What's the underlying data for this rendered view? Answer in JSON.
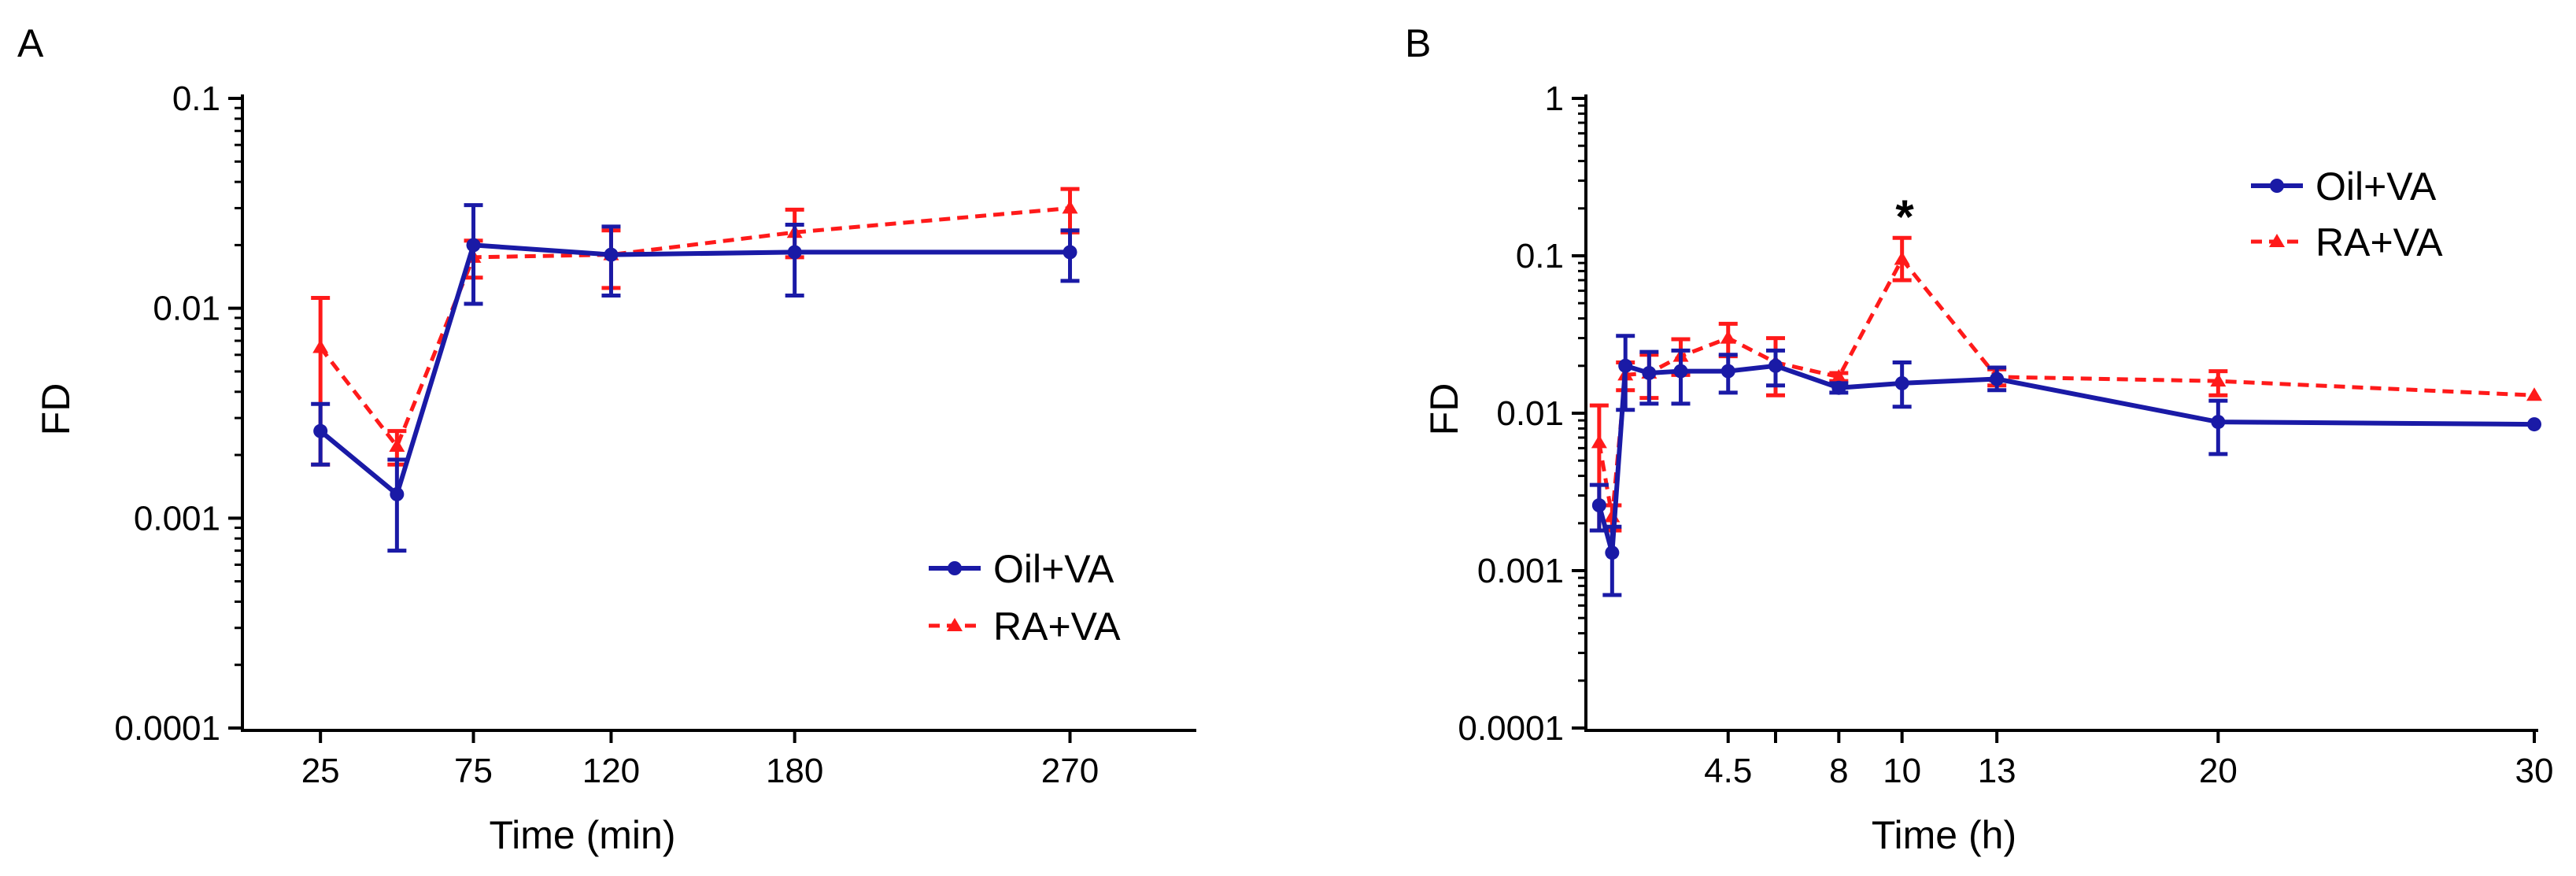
{
  "chart_data": [
    {
      "panel_label": "A",
      "type": "line",
      "title": "",
      "xlabel": "Time (min)",
      "ylabel": "FD",
      "yscale": "log",
      "ylim": [
        0.0001,
        0.1
      ],
      "xlim": [
        0,
        310
      ],
      "grid": false,
      "legend_position": "bottom-right",
      "x_ticks": [
        25,
        75,
        120,
        180,
        270
      ],
      "x_tick_labels": [
        "25",
        "75",
        "120",
        "180",
        "270"
      ],
      "y_ticks": [
        0.0001,
        0.001,
        0.01,
        0.1
      ],
      "y_tick_labels": [
        "0.0001",
        "0.001",
        "0.01",
        "0.1"
      ],
      "series": [
        {
          "name": "Oil+VA",
          "color": "#1a1aa6",
          "line_style": "solid",
          "marker": "circle",
          "x": [
            25,
            50,
            75,
            120,
            180,
            270
          ],
          "y": [
            0.0026,
            0.0013,
            0.02,
            0.018,
            0.0185,
            0.0185
          ],
          "err_low": [
            0.0018,
            0.0007,
            0.0105,
            0.0115,
            0.0115,
            0.0135
          ],
          "err_high": [
            0.0035,
            0.0019,
            0.031,
            0.0245,
            0.025,
            0.0235
          ]
        },
        {
          "name": "RA+VA",
          "color": "#ff1a1a",
          "line_style": "dashed",
          "marker": "triangle",
          "x": [
            25,
            50,
            75,
            120,
            180,
            270
          ],
          "y": [
            0.0065,
            0.0022,
            0.0175,
            0.018,
            0.023,
            0.03
          ],
          "err_low": [
            0.0018,
            0.0018,
            0.014,
            0.0125,
            0.0175,
            0.023
          ],
          "err_high": [
            0.0112,
            0.0026,
            0.021,
            0.0235,
            0.0295,
            0.037
          ]
        }
      ]
    },
    {
      "panel_label": "B",
      "type": "line",
      "title": "",
      "xlabel": "Time (h)",
      "ylabel": "FD",
      "yscale": "log",
      "ylim": [
        0.0001,
        1
      ],
      "xlim": [
        0,
        30
      ],
      "grid": false,
      "legend_position": "top-right",
      "annotation": "*",
      "x_ticks": [
        4.5,
        6,
        8,
        10,
        13,
        20,
        30
      ],
      "x_tick_labels": [
        "4.5",
        "",
        "8",
        "10",
        "13",
        "20",
        "30"
      ],
      "y_ticks": [
        0.0001,
        0.001,
        0.01,
        0.1,
        1
      ],
      "y_tick_labels": [
        "0.0001",
        "0.001",
        "0.01",
        "0.1",
        "1"
      ],
      "series": [
        {
          "name": "Oil+VA",
          "color": "#1a1aa6",
          "line_style": "solid",
          "marker": "circle",
          "x": [
            0.42,
            0.83,
            1.25,
            2,
            3,
            4.5,
            6,
            8,
            10,
            13,
            20,
            30
          ],
          "y": [
            0.0026,
            0.0013,
            0.02,
            0.018,
            0.0185,
            0.0185,
            0.02,
            0.0145,
            0.0155,
            0.0165,
            0.0088,
            0.0085
          ],
          "err_low": [
            0.0018,
            0.0007,
            0.0105,
            0.0115,
            0.0115,
            0.0135,
            0.015,
            0.0135,
            0.011,
            0.014,
            0.0055,
            0.0085
          ],
          "err_high": [
            0.0035,
            0.0019,
            0.031,
            0.0245,
            0.025,
            0.0235,
            0.025,
            0.0155,
            0.021,
            0.0195,
            0.012,
            0.0085
          ]
        },
        {
          "name": "RA+VA",
          "color": "#ff1a1a",
          "line_style": "dashed",
          "marker": "triangle",
          "x": [
            0.42,
            0.83,
            1.25,
            2,
            3,
            4.5,
            6,
            8,
            10,
            13,
            20,
            30
          ],
          "y": [
            0.0065,
            0.0022,
            0.0175,
            0.018,
            0.023,
            0.03,
            0.021,
            0.017,
            0.095,
            0.017,
            0.016,
            0.013
          ],
          "err_low": [
            0.0018,
            0.0018,
            0.014,
            0.0125,
            0.0175,
            0.023,
            0.013,
            0.016,
            0.07,
            0.015,
            0.013,
            0.013
          ],
          "err_high": [
            0.0112,
            0.0026,
            0.021,
            0.0235,
            0.0295,
            0.037,
            0.03,
            0.018,
            0.13,
            0.019,
            0.0185,
            0.013
          ]
        }
      ]
    }
  ]
}
